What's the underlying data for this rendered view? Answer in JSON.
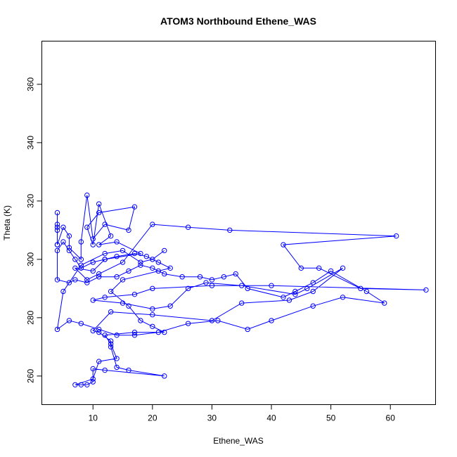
{
  "chart_data": {
    "type": "line",
    "title": "ATOM3 Northbound Ethene_WAS",
    "xlabel": "Ethene_WAS",
    "ylabel": "Theta (K)",
    "xlim": [
      1.4,
      67.6
    ],
    "ylim": [
      250.2,
      374.8
    ],
    "x_ticks": [
      10,
      20,
      30,
      40,
      50,
      60
    ],
    "y_ticks": [
      260,
      280,
      300,
      320,
      340,
      360
    ],
    "grid": false,
    "legend": "none",
    "series": [
      {
        "color": "#0000ff",
        "marker": "open-circle",
        "points": [
          [
            4,
            305
          ],
          [
            4,
            311
          ],
          [
            4,
            316
          ],
          [
            4,
            312
          ],
          [
            4,
            310
          ],
          [
            4,
            305
          ],
          [
            5,
            311
          ],
          [
            6,
            308
          ],
          [
            6,
            304
          ],
          [
            8,
            300
          ],
          [
            8,
            306
          ],
          [
            9,
            322
          ],
          [
            10,
            307
          ],
          [
            12,
            312
          ],
          [
            16,
            310
          ],
          [
            17,
            318
          ],
          [
            11,
            316
          ],
          [
            9,
            311
          ],
          [
            10,
            305
          ],
          [
            11,
            319
          ],
          [
            13,
            308
          ],
          [
            11,
            305
          ],
          [
            14,
            306
          ],
          [
            18,
            302
          ],
          [
            12,
            300
          ],
          [
            10,
            296
          ],
          [
            7,
            297
          ],
          [
            9,
            293
          ],
          [
            11,
            295
          ],
          [
            15,
            299
          ],
          [
            20,
            312
          ],
          [
            26,
            311
          ],
          [
            33,
            310
          ],
          [
            61,
            308
          ],
          [
            42,
            305
          ],
          [
            45,
            297
          ],
          [
            48,
            297
          ],
          [
            55,
            290
          ],
          [
            66,
            289.5
          ],
          [
            40,
            291
          ],
          [
            30,
            291
          ],
          [
            20,
            290
          ],
          [
            17,
            288
          ],
          [
            12,
            287
          ],
          [
            10,
            286
          ],
          [
            15,
            285
          ],
          [
            20,
            283
          ],
          [
            23,
            284
          ],
          [
            26,
            290
          ],
          [
            29,
            292
          ],
          [
            35,
            291
          ],
          [
            44,
            288
          ],
          [
            46,
            290
          ],
          [
            52,
            297
          ],
          [
            47,
            289
          ],
          [
            43,
            286
          ],
          [
            35,
            285
          ],
          [
            30,
            279
          ],
          [
            20,
            281
          ],
          [
            13,
            282
          ],
          [
            10,
            275.5
          ],
          [
            11,
            275
          ],
          [
            13,
            272
          ],
          [
            13,
            270
          ],
          [
            14,
            263
          ],
          [
            16,
            262
          ],
          [
            22,
            260
          ],
          [
            12,
            262
          ],
          [
            10,
            262.5
          ],
          [
            10,
            258
          ],
          [
            9,
            257
          ],
          [
            8,
            257
          ],
          [
            7,
            257
          ],
          [
            10,
            259
          ],
          [
            11,
            265
          ],
          [
            14,
            266
          ],
          [
            13,
            271
          ],
          [
            12,
            274
          ],
          [
            17,
            275
          ],
          [
            22,
            275
          ],
          [
            20,
            277
          ],
          [
            18,
            279
          ],
          [
            16,
            284
          ],
          [
            13,
            289
          ],
          [
            15,
            293
          ],
          [
            21,
            296
          ],
          [
            23,
            297
          ],
          [
            21,
            299
          ],
          [
            19,
            301
          ],
          [
            17,
            302
          ],
          [
            14,
            301
          ],
          [
            12,
            300
          ],
          [
            10,
            299
          ],
          [
            8,
            297
          ],
          [
            7,
            300
          ],
          [
            6,
            303
          ],
          [
            5,
            306
          ],
          [
            4,
            303
          ],
          [
            4,
            293
          ],
          [
            6,
            292
          ],
          [
            7,
            293
          ],
          [
            9,
            292
          ],
          [
            11,
            294
          ],
          [
            14,
            294
          ],
          [
            16,
            296
          ],
          [
            18,
            298
          ],
          [
            20,
            297
          ],
          [
            22,
            295
          ],
          [
            25,
            294
          ],
          [
            28,
            294
          ],
          [
            30,
            293
          ],
          [
            32,
            294
          ],
          [
            34,
            295
          ],
          [
            36,
            290
          ],
          [
            42,
            287
          ],
          [
            44,
            289
          ],
          [
            47,
            292
          ],
          [
            50,
            296
          ],
          [
            56,
            289
          ],
          [
            59,
            285
          ],
          [
            52,
            287
          ],
          [
            47,
            284
          ],
          [
            40,
            279
          ],
          [
            36,
            276
          ],
          [
            31,
            279
          ],
          [
            26,
            278
          ],
          [
            21,
            275
          ],
          [
            17,
            274
          ],
          [
            14,
            274
          ],
          [
            11,
            276
          ],
          [
            8,
            278
          ],
          [
            6,
            279
          ],
          [
            4,
            276
          ],
          [
            5,
            289
          ],
          [
            8,
            298
          ],
          [
            12,
            302
          ],
          [
            15,
            303
          ],
          [
            18,
            299
          ],
          [
            20,
            300
          ],
          [
            22,
            303
          ]
        ]
      }
    ]
  }
}
